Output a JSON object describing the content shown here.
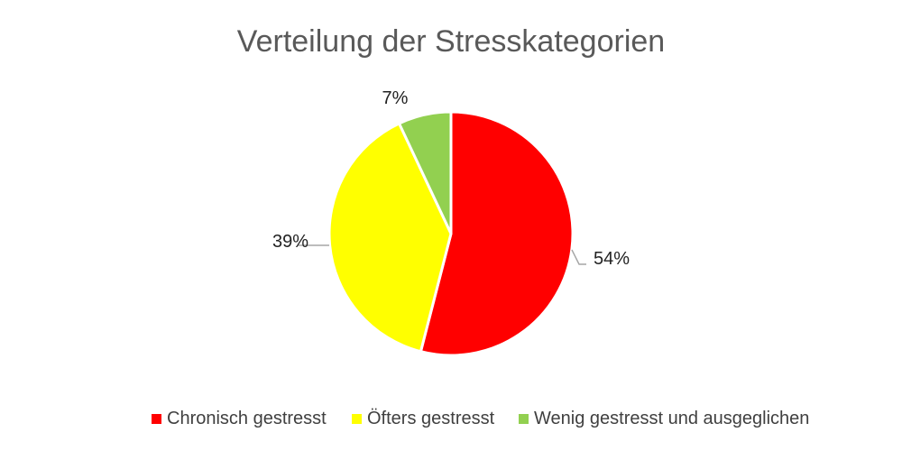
{
  "chart_data": {
    "type": "pie",
    "title": "Verteilung der Stresskategorien",
    "categories": [
      "Chronisch gestresst",
      "Öfters gestresst",
      "Wenig gestresst und ausgeglichen"
    ],
    "values": [
      54,
      39,
      7
    ],
    "labels": [
      "54%",
      "39%",
      "7%"
    ],
    "colors": [
      "#ff0000",
      "#ffff00",
      "#92d050"
    ],
    "legend_position": "bottom",
    "start_angle": "12 o'clock",
    "direction": "clockwise"
  }
}
